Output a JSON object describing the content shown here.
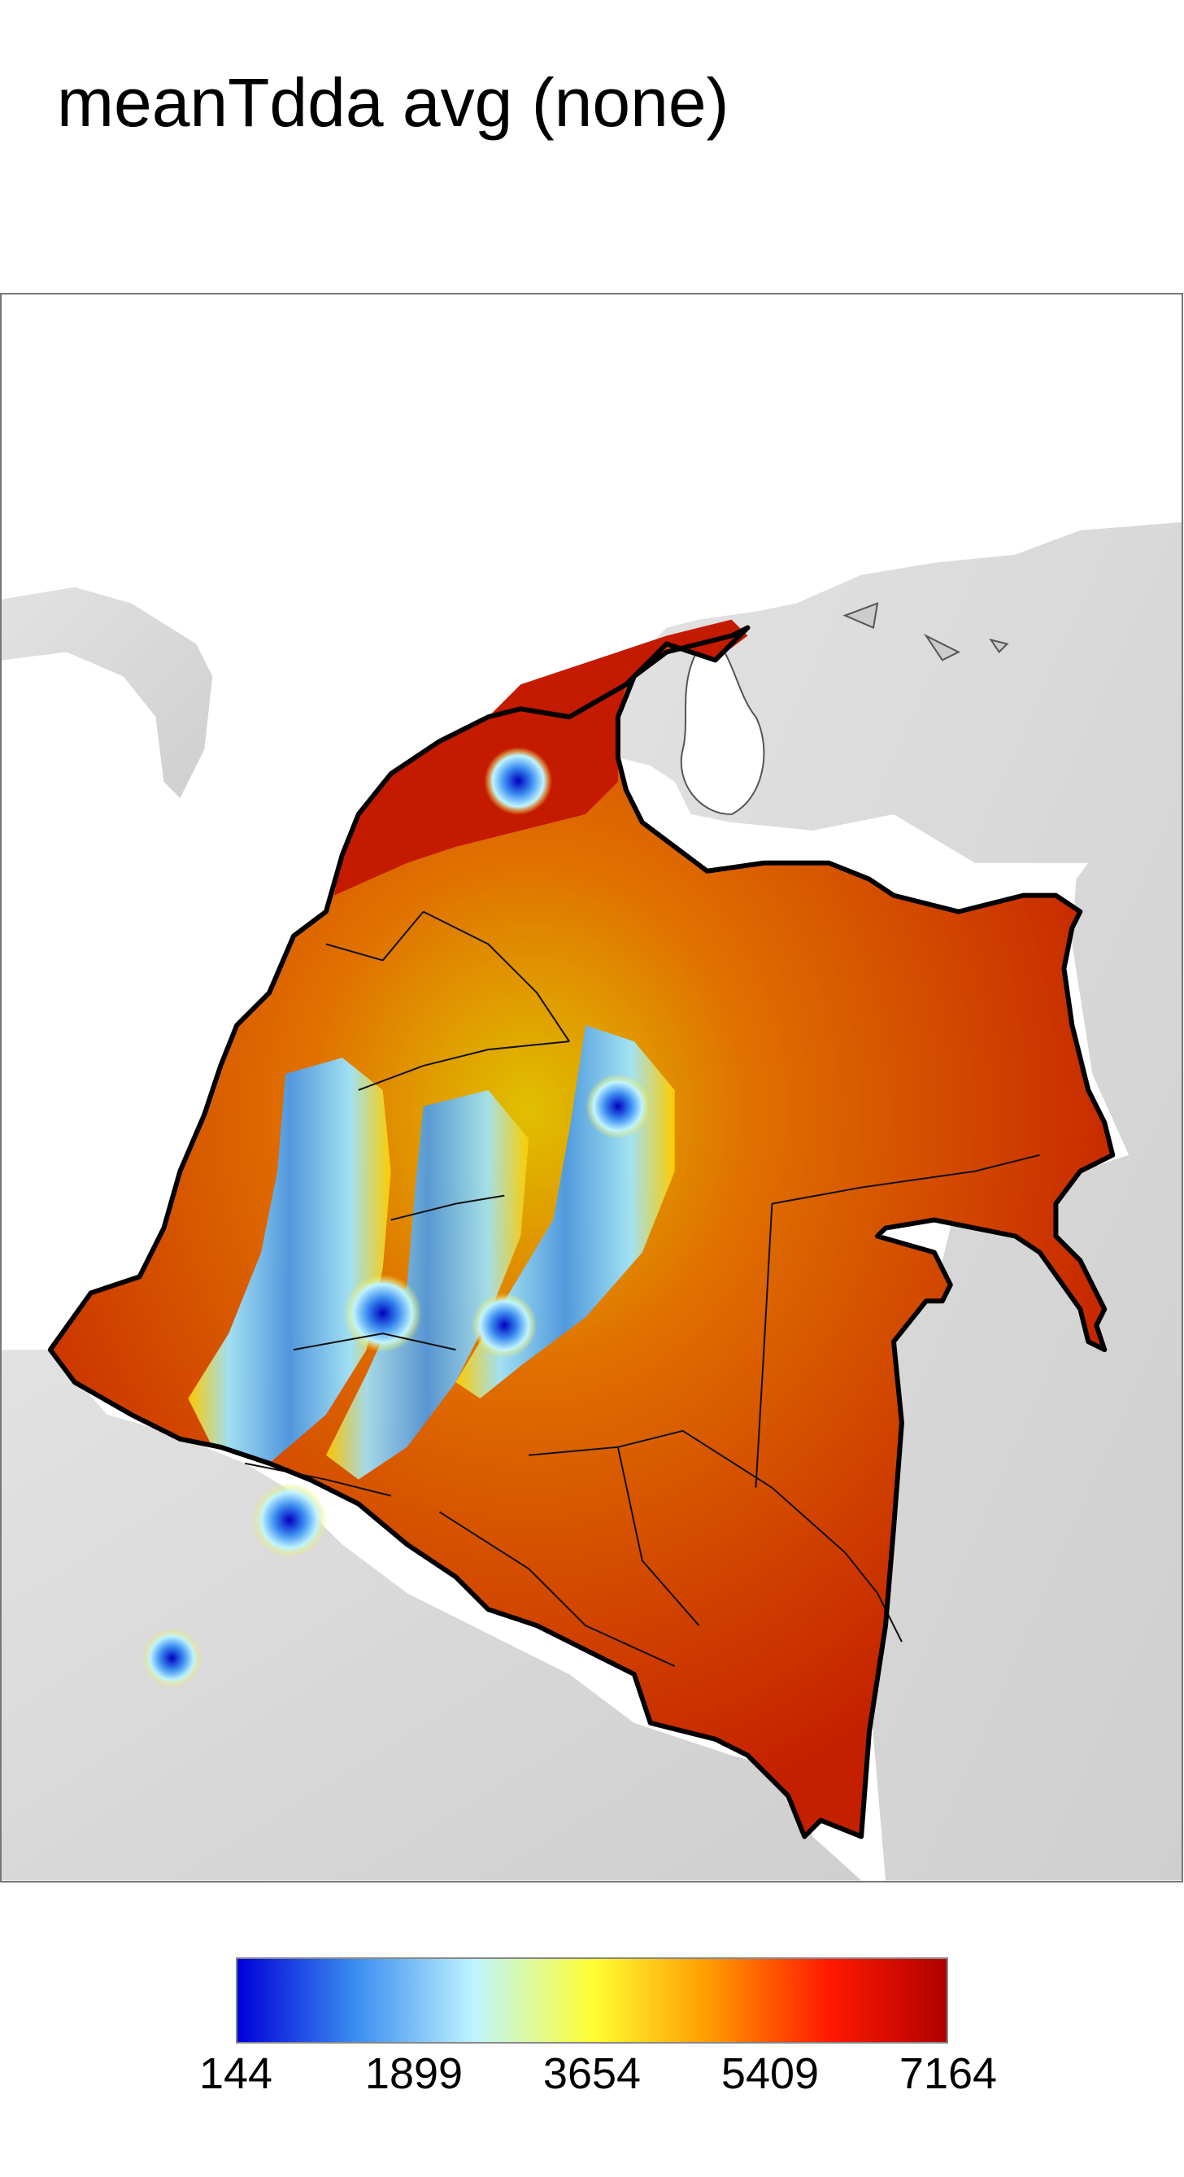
{
  "title": "meanTdda avg (none)",
  "legend": {
    "ticks": [
      "144",
      "1899",
      "3654",
      "5409",
      "7164"
    ],
    "colors": [
      "#0000d8",
      "#3a8cf0",
      "#bff4ff",
      "#ffff33",
      "#ff9900",
      "#ff1a00",
      "#b00000"
    ]
  },
  "map": {
    "background_terrain": "#d6d6d6",
    "sea": "#ffffff",
    "high_value_color": "#c41a00",
    "mid_value_color": "#e8c800",
    "low_value_color": "#1a4fd8"
  }
}
